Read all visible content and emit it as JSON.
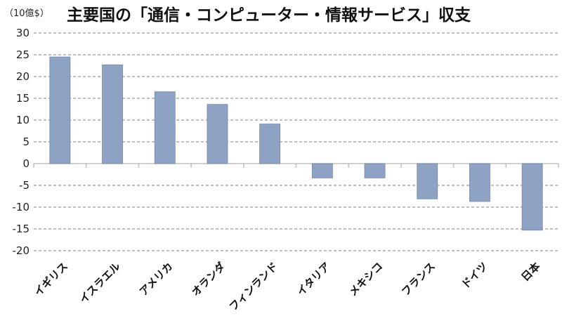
{
  "chart_data": {
    "type": "bar",
    "title": "主要国の「通信・コンピューター・情報サービス」収支",
    "unit_label": "（10億$）",
    "categories": [
      "イギリス",
      "イスラエル",
      "アメリカ",
      "オランダ",
      "フィンランド",
      "イタリア",
      "メキシコ",
      "フランス",
      "ドイツ",
      "日本"
    ],
    "values": [
      24.5,
      22.7,
      16.5,
      13.6,
      9.1,
      -3.3,
      -3.3,
      -8.1,
      -8.7,
      -15.3
    ],
    "ylim": [
      -20,
      30
    ],
    "yticks": [
      30,
      25,
      20,
      15,
      10,
      5,
      0,
      -5,
      -10,
      -15,
      -20
    ],
    "grid": true,
    "bar_color": "#8ea3c3",
    "bar_stroke": "#6f86ab"
  }
}
